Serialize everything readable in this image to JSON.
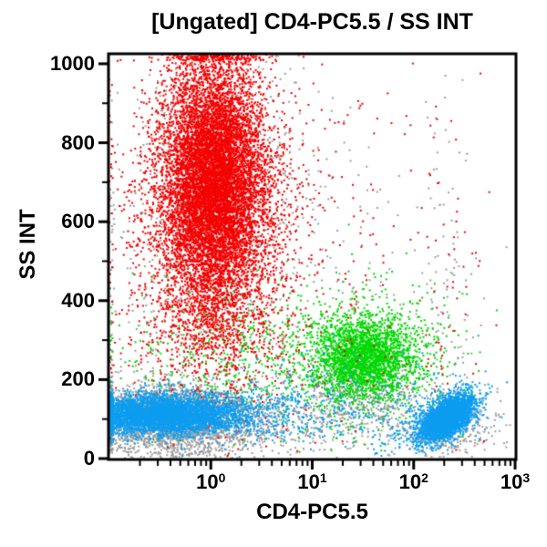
{
  "title": "[Ungated] CD4-PC5.5 / SS INT",
  "chart_data": {
    "type": "scatter",
    "subtype": "flow-cytometry-dot-plot",
    "title": "[Ungated] CD4-PC5.5 / SS INT",
    "xlabel": "CD4-PC5.5",
    "ylabel": "SS INT",
    "x_scale": "log",
    "xlim": [
      0.1,
      1000
    ],
    "ylim": [
      0,
      1023
    ],
    "grid": false,
    "legend": "none",
    "y_axis_ticks": [
      0,
      200,
      400,
      600,
      800,
      1000
    ],
    "y_minor_tick_step": 100,
    "x_axis_tick_exponents": [
      0,
      1,
      2,
      3
    ],
    "x_tick_base": "10",
    "colors": {
      "red": "#f40000",
      "green": "#00d900",
      "blue": "#0d9df0",
      "gray": "#9e9e9e",
      "axis": "#000000",
      "background": "#ffffff"
    },
    "populations": [
      {
        "name": "gray-debris-band-left",
        "color": "gray",
        "n": 2500,
        "cx": -0.38,
        "sx": 0.42,
        "cy": 95,
        "sy": 48
      },
      {
        "name": "gray-debris-band-wide",
        "color": "gray",
        "n": 700,
        "cx": 0.9,
        "sx": 1.0,
        "cy": 100,
        "sy": 55
      },
      {
        "name": "gray-mid-diffuse",
        "color": "gray",
        "n": 550,
        "cx": 0.35,
        "sx": 0.85,
        "cy": 380,
        "sy": 240
      },
      {
        "name": "gray-red-halo",
        "color": "gray",
        "n": 750,
        "cx": 0.05,
        "sx": 0.42,
        "cy": 700,
        "sy": 215
      },
      {
        "name": "gray-right-column",
        "color": "gray",
        "n": 130,
        "cx": 2.32,
        "sx": 0.14,
        "cy": 350,
        "sy": 240
      },
      {
        "name": "gray-under-blue-right",
        "color": "gray",
        "n": 260,
        "cx": 2.33,
        "sx": 0.18,
        "cy": 62,
        "sy": 28
      },
      {
        "name": "gray-under-green",
        "color": "gray",
        "n": 350,
        "cx": 1.5,
        "sx": 0.3,
        "cy": 160,
        "sy": 50
      },
      {
        "name": "green-cluster-core",
        "color": "green",
        "n": 2300,
        "cx": 1.52,
        "sx": 0.26,
        "cy": 258,
        "sy": 52
      },
      {
        "name": "green-cluster-fringe",
        "color": "green",
        "n": 650,
        "cx": 1.45,
        "sx": 0.48,
        "cy": 255,
        "sy": 95
      },
      {
        "name": "green-diffuse-left",
        "color": "green",
        "n": 420,
        "cx": 0.15,
        "sx": 0.62,
        "cy": 265,
        "sy": 95
      },
      {
        "name": "red-cluster-core",
        "color": "red",
        "n": 9000,
        "cx": 0.03,
        "sx": 0.25,
        "cy": 700,
        "sy": 160,
        "pile_top": true
      },
      {
        "name": "red-cluster-fringe",
        "color": "red",
        "n": 2000,
        "cx": 0.02,
        "sx": 0.42,
        "cy": 580,
        "sy": 220
      },
      {
        "name": "red-low-fringe",
        "color": "red",
        "n": 280,
        "cx": 0.05,
        "sx": 0.38,
        "cy": 330,
        "sy": 65
      },
      {
        "name": "red-strays",
        "color": "red",
        "n": 320,
        "cx": 0.7,
        "sx": 0.85,
        "cy": 520,
        "sy": 270
      },
      {
        "name": "red-right-column",
        "color": "red",
        "n": 60,
        "cx": 2.3,
        "sx": 0.16,
        "cy": 420,
        "sy": 240
      },
      {
        "name": "blue-left-cluster-core",
        "color": "blue",
        "n": 4500,
        "cx": -0.5,
        "sx": 0.4,
        "cy": 112,
        "sy": 25
      },
      {
        "name": "blue-left-cluster-tail",
        "color": "blue",
        "n": 420,
        "cx": 0.35,
        "sx": 0.5,
        "cy": 120,
        "sy": 38
      },
      {
        "name": "blue-mid-strays",
        "color": "blue",
        "n": 230,
        "cx": 1.35,
        "sx": 0.65,
        "cy": 135,
        "sy": 60
      },
      {
        "name": "blue-right-cluster-core",
        "color": "blue",
        "n": 3000,
        "cx": 2.34,
        "sx": 0.13,
        "cy": 104,
        "sy": 24,
        "slope": 120
      },
      {
        "name": "blue-right-cluster-tail",
        "color": "blue",
        "n": 300,
        "cx": 2.15,
        "sx": 0.25,
        "cy": 95,
        "sy": 35,
        "slope": 100
      }
    ]
  }
}
